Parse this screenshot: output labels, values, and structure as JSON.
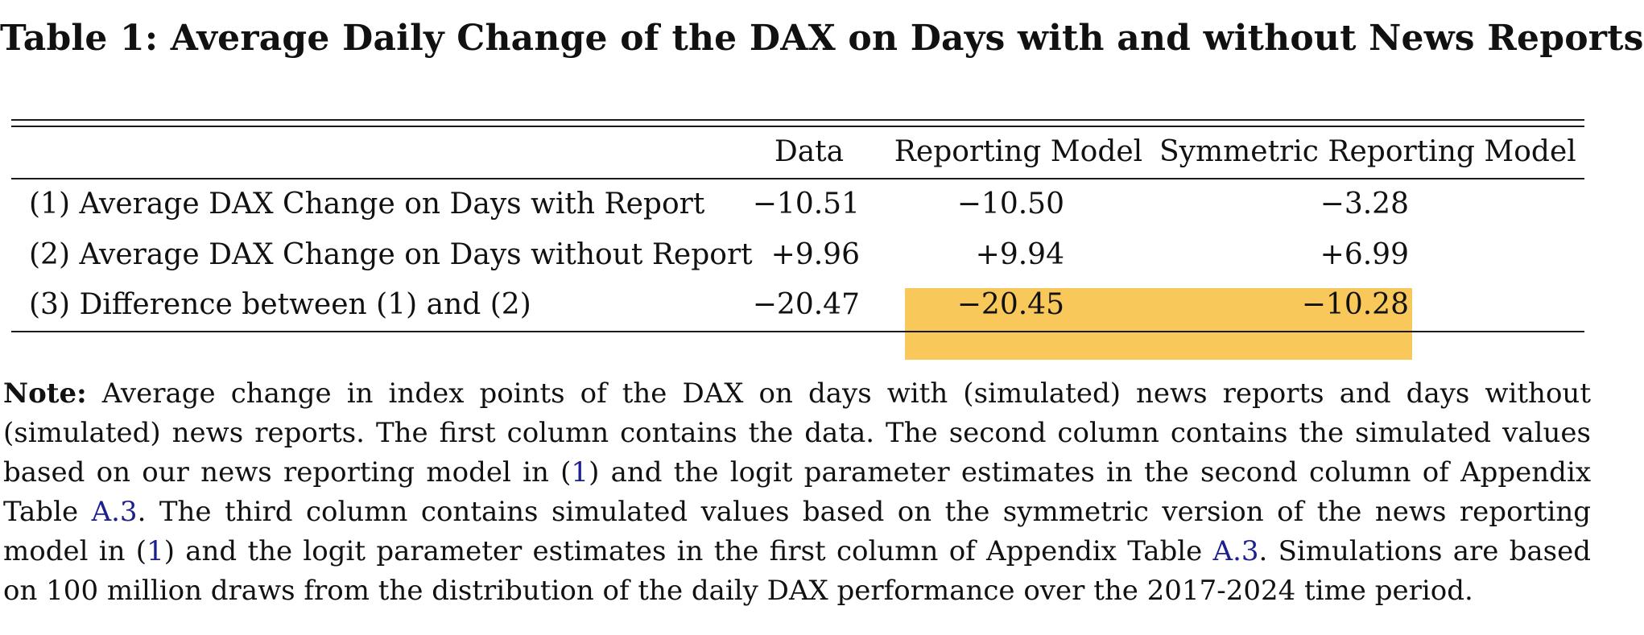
{
  "title": "Table 1: Average Daily Change of the DAX on Days with and without News Reports",
  "columns": [
    "",
    "Data",
    "Reporting Model",
    "Symmetric Reporting Model"
  ],
  "rows": [
    {
      "label": "(1) Average DAX Change on Days with Report",
      "data": "−10.51",
      "reporting": "−10.50",
      "symmetric": "−3.28"
    },
    {
      "label": "(2) Average DAX Change on Days without Report",
      "data": "+9.96",
      "reporting": "+9.94",
      "symmetric": "+6.99"
    },
    {
      "label": "(3) Difference between (1) and (2)",
      "data": "−20.47",
      "reporting": "−20.45",
      "symmetric": "−10.28"
    }
  ],
  "highlight_color": "#f8c85a",
  "link_color": "#1c1f8f",
  "note": {
    "label": "Note:",
    "t1": "Average change in index points of the DAX on days with (simulated) news reports and days without (simulated) news reports. The first column contains the data. The second column contains the simulated values based on our news reporting model in (",
    "ref1": "1",
    "t2": ") and the logit parameter estimates in the second column of Appendix Table ",
    "ref2": "A.3",
    "t3": ". The third column contains simulated values based on the symmetric version of the news reporting model in (",
    "ref3": "1",
    "t4": ") and the logit parameter estimates in the first column of Appendix Table ",
    "ref4": "A.3",
    "t5": ". Simulations are based on 100 million draws from the distribution of the daily DAX performance over the 2017-2024 time period."
  }
}
